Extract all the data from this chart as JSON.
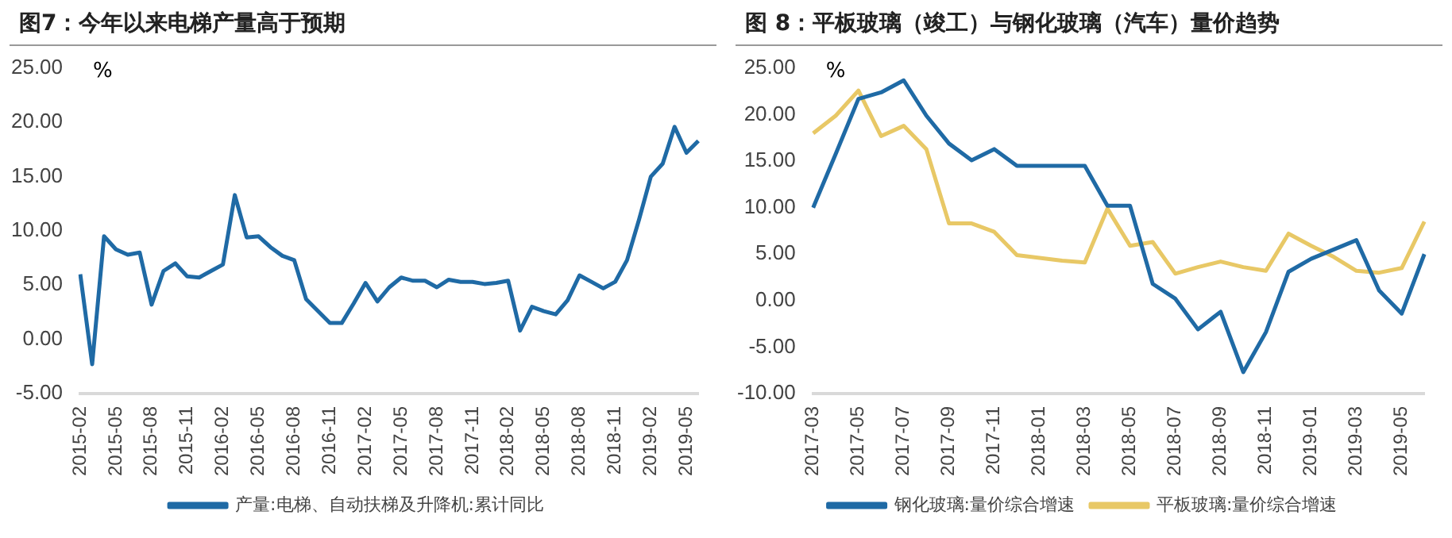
{
  "chart_data": [
    {
      "type": "line",
      "title": "图7：今年以来电梯产量高于预期",
      "ylabel": "%",
      "categories": [
        "2015-02",
        null,
        null,
        "2015-05",
        null,
        null,
        "2015-08",
        null,
        null,
        "2015-11",
        null,
        null,
        "2016-02",
        null,
        null,
        "2016-05",
        null,
        null,
        "2016-08",
        null,
        null,
        "2016-11",
        null,
        null,
        "2017-02",
        null,
        null,
        "2017-05",
        null,
        null,
        "2017-08",
        null,
        null,
        "2017-11",
        null,
        null,
        "2018-02",
        null,
        null,
        "2018-05",
        null,
        null,
        "2018-08",
        null,
        null,
        "2018-11",
        null,
        null,
        "2019-02",
        null,
        null,
        "2019-05",
        null
      ],
      "series": [
        {
          "name": "产量:电梯、自动扶梯及升降机:累计同比",
          "color": "#1f6aa5",
          "values": [
            6.0,
            -2.3,
            9.5,
            8.3,
            7.8,
            8.0,
            3.2,
            6.3,
            7.0,
            5.8,
            5.7,
            6.3,
            6.9,
            13.3,
            9.4,
            9.5,
            8.5,
            7.7,
            7.3,
            3.7,
            2.6,
            1.5,
            1.5,
            3.3,
            5.2,
            3.5,
            4.8,
            5.7,
            5.4,
            5.4,
            4.8,
            5.5,
            5.3,
            5.3,
            5.1,
            5.2,
            5.4,
            0.8,
            3.0,
            2.6,
            2.3,
            3.6,
            5.9,
            5.3,
            4.7,
            5.3,
            7.3,
            11.0,
            15.0,
            16.2,
            19.6,
            17.2,
            18.3
          ]
        }
      ],
      "ylim": [
        -5,
        25
      ],
      "yticks": [
        {
          "value": -5,
          "label": "-5.00"
        },
        {
          "value": 0,
          "label": "0.00"
        },
        {
          "value": 5,
          "label": "5.00"
        },
        {
          "value": 10,
          "label": "10.00"
        },
        {
          "value": 15,
          "label": "15.00"
        },
        {
          "value": 20,
          "label": "20.00"
        },
        {
          "value": 25,
          "label": "25.00"
        }
      ],
      "grid": false,
      "legend": "bottom",
      "marker": "none",
      "line_style": "solid"
    },
    {
      "type": "line",
      "title": "图 8：平板玻璃（竣工）与钢化玻璃（汽车）量价趋势",
      "ylabel": "%",
      "categories": [
        "2017-03",
        null,
        "2017-05",
        null,
        "2017-07",
        null,
        "2017-09",
        null,
        "2017-11",
        null,
        "2018-01",
        null,
        "2018-03",
        null,
        "2018-05",
        null,
        "2018-07",
        null,
        "2018-09",
        null,
        "2018-11",
        null,
        "2019-01",
        null,
        "2019-03",
        null,
        "2019-05",
        null
      ],
      "series": [
        {
          "name": "钢化玻璃:量价综合增速",
          "color": "#1f6aa5",
          "values": [
            10.0,
            15.8,
            21.7,
            22.4,
            23.7,
            19.9,
            16.9,
            15.1,
            16.3,
            14.5,
            14.5,
            14.5,
            14.5,
            10.2,
            10.2,
            1.8,
            0.2,
            -3.1,
            -1.2,
            -7.7,
            -3.4,
            3.1,
            4.5,
            5.5,
            6.5,
            1.1,
            -1.4,
            5.0
          ]
        },
        {
          "name": "平板玻璃:量价综合增速",
          "color": "#e8c866",
          "values": [
            18.0,
            19.9,
            22.6,
            17.7,
            18.8,
            16.3,
            8.3,
            8.3,
            7.4,
            4.9,
            4.6,
            4.3,
            4.1,
            9.9,
            5.9,
            6.3,
            2.9,
            3.6,
            4.2,
            3.6,
            3.2,
            7.2,
            5.9,
            4.7,
            3.2,
            3.0,
            3.5,
            8.5
          ]
        }
      ],
      "ylim": [
        -10,
        25
      ],
      "yticks": [
        {
          "value": -10,
          "label": "-10.00"
        },
        {
          "value": -5,
          "label": "-5.00"
        },
        {
          "value": 0,
          "label": "0.00"
        },
        {
          "value": 5,
          "label": "5.00"
        },
        {
          "value": 10,
          "label": "10.00"
        },
        {
          "value": 15,
          "label": "15.00"
        },
        {
          "value": 20,
          "label": "20.00"
        },
        {
          "value": 25,
          "label": "25.00"
        }
      ],
      "grid": false,
      "legend": "bottom",
      "marker": "none",
      "line_style": "solid"
    }
  ]
}
